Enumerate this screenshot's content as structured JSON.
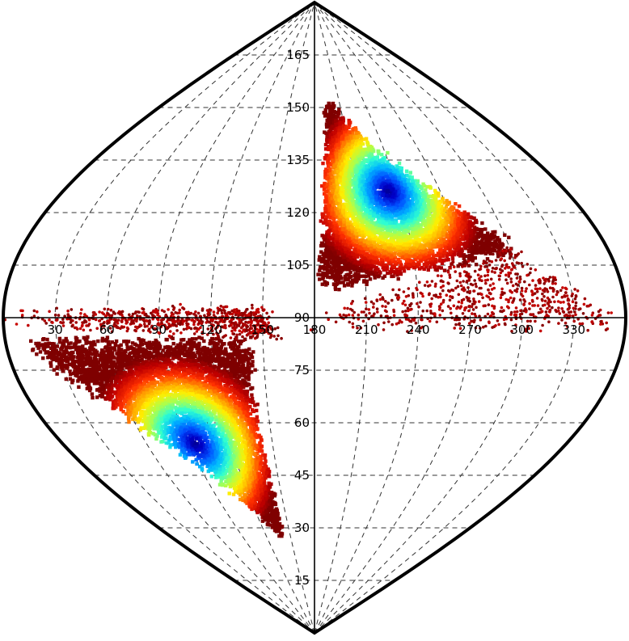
{
  "chart_data": {
    "type": "scatter",
    "projection": "sinusoidal",
    "grid": true,
    "grid_style": "dashed",
    "colormap": "jet (high density blue, low density dark red)",
    "xlim": [
      0,
      360
    ],
    "ylim": [
      0,
      180
    ],
    "x_ticks": [
      "30",
      "60",
      "90",
      "120",
      "150",
      "180",
      "210",
      "240",
      "270",
      "300",
      "330"
    ],
    "y_ticks": [
      "15",
      "30",
      "45",
      "60",
      "75",
      "90",
      "105",
      "120",
      "135",
      "150",
      "165"
    ],
    "clusters": [
      {
        "center": [
          233,
          126
        ],
        "x_range": [
          165,
          360
        ],
        "y_range": [
          85,
          155
        ],
        "peak_density_at": [
          233,
          126
        ]
      },
      {
        "center": [
          95,
          54
        ],
        "x_range": [
          0,
          150
        ],
        "y_range": [
          23,
          95
        ],
        "peak_density_at": [
          95,
          54
        ]
      }
    ],
    "colors": {
      "outline": "#000000",
      "grid": "#333333",
      "density_low": "#800000",
      "density_mid_low": "#ff0000",
      "density_mid": "#ffff00",
      "density_mid_high": "#00ffff",
      "density_high": "#00008f"
    }
  }
}
